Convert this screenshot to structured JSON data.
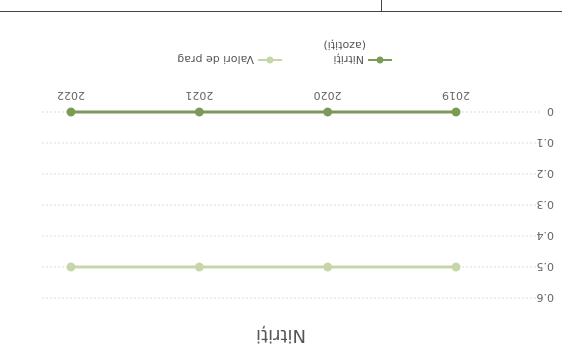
{
  "chart_data": {
    "type": "line",
    "title": "Nitriți",
    "xlabel": "",
    "ylabel": "",
    "categories": [
      "2019",
      "2020",
      "2021",
      "2022"
    ],
    "ylim": [
      0,
      0.6
    ],
    "yticks": [
      "0",
      "0.1",
      "0.2",
      "0.3",
      "0.4",
      "0.5",
      "0.6"
    ],
    "grid": true,
    "legend_position": "top",
    "series": [
      {
        "name": "Nitriți (azotiți)",
        "values": [
          0,
          0,
          0,
          0
        ],
        "color": "#7a9a56"
      },
      {
        "name": "Valori de prag",
        "values": [
          0.5,
          0.5,
          0.5,
          0.5
        ],
        "color": "#c5d6a8"
      }
    ]
  }
}
